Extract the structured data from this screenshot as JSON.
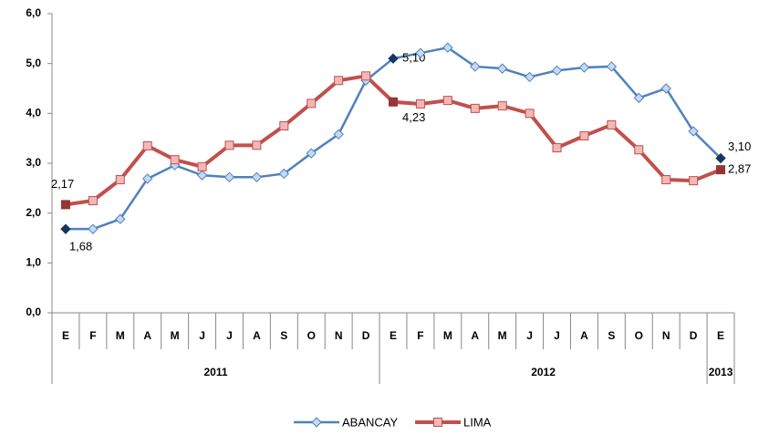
{
  "chart_data": {
    "type": "line",
    "category_groups": [
      {
        "name": "2011",
        "categories": [
          "E",
          "F",
          "M",
          "A",
          "M",
          "J",
          "J",
          "A",
          "S",
          "O",
          "N",
          "D"
        ]
      },
      {
        "name": "2012",
        "categories": [
          "E",
          "F",
          "M",
          "A",
          "M",
          "J",
          "J",
          "A",
          "S",
          "O",
          "N",
          "D"
        ]
      },
      {
        "name": "2013",
        "categories": [
          "E"
        ]
      }
    ],
    "series": [
      {
        "name": "ABANCAY",
        "color": "#4f81bd",
        "marker": "diamond",
        "marker_fill": "#c5d9f1",
        "highlight_color": "#17375e",
        "values": [
          1.68,
          1.68,
          1.88,
          2.69,
          2.96,
          2.76,
          2.72,
          2.72,
          2.79,
          3.2,
          3.58,
          4.66,
          5.1,
          5.21,
          5.32,
          4.94,
          4.9,
          4.73,
          4.86,
          4.92,
          4.94,
          4.31,
          4.5,
          3.64,
          3.1
        ],
        "value_labels": [
          "1,68",
          null,
          null,
          null,
          null,
          null,
          null,
          null,
          null,
          null,
          null,
          null,
          "5,10",
          null,
          null,
          null,
          null,
          null,
          null,
          null,
          null,
          null,
          null,
          null,
          "3,10"
        ]
      },
      {
        "name": "LIMA",
        "color": "#c0504d",
        "marker": "square",
        "marker_fill": "#f2b8b8",
        "highlight_color": "#953735",
        "values": [
          2.17,
          2.25,
          2.67,
          3.35,
          3.07,
          2.93,
          3.36,
          3.36,
          3.75,
          4.2,
          4.66,
          4.75,
          4.23,
          4.19,
          4.26,
          4.1,
          4.15,
          4.0,
          3.31,
          3.55,
          3.77,
          3.27,
          2.67,
          2.65,
          2.87
        ],
        "value_labels": [
          "2,17",
          null,
          null,
          null,
          null,
          null,
          null,
          null,
          null,
          null,
          null,
          null,
          "4,23",
          null,
          null,
          null,
          null,
          null,
          null,
          null,
          null,
          null,
          null,
          null,
          "2,87"
        ]
      }
    ],
    "ylim": [
      0,
      6
    ],
    "yticks": [
      {
        "value": 0,
        "label": "0,0"
      },
      {
        "value": 1,
        "label": "1,0"
      },
      {
        "value": 2,
        "label": "2,0"
      },
      {
        "value": 3,
        "label": "3,0"
      },
      {
        "value": 4,
        "label": "4,0"
      },
      {
        "value": 5,
        "label": "5,0"
      },
      {
        "value": 6,
        "label": "6,0"
      }
    ],
    "grid": false,
    "legend": "bottom"
  }
}
